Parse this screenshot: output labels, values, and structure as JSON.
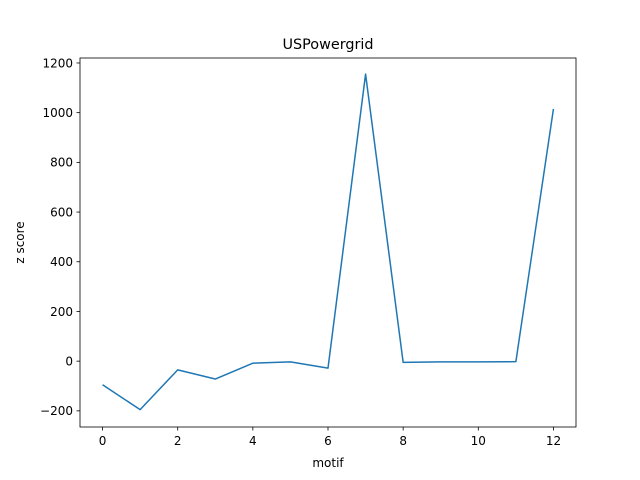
{
  "chart_data": {
    "type": "line",
    "title": "USPowergrid",
    "xlabel": "motif",
    "ylabel": "z score",
    "xlim": [
      -0.6,
      12.6
    ],
    "ylim": [
      -265,
      1220
    ],
    "xticks": [
      0,
      2,
      4,
      6,
      8,
      10,
      12
    ],
    "yticks": [
      -200,
      0,
      200,
      400,
      600,
      800,
      1000,
      1200
    ],
    "ytick_labels": [
      "−200",
      "0",
      "200",
      "400",
      "600",
      "800",
      "1000",
      "1200"
    ],
    "grid": false,
    "series": [
      {
        "color": "#1f77b4",
        "x": [
          0,
          1,
          2,
          3,
          4,
          5,
          6,
          7,
          8,
          9,
          10,
          11,
          12
        ],
        "y": [
          -95,
          -195,
          -35,
          -72,
          -8,
          -3,
          -28,
          1155,
          -5,
          -3,
          -3,
          -2,
          1015
        ]
      }
    ]
  }
}
